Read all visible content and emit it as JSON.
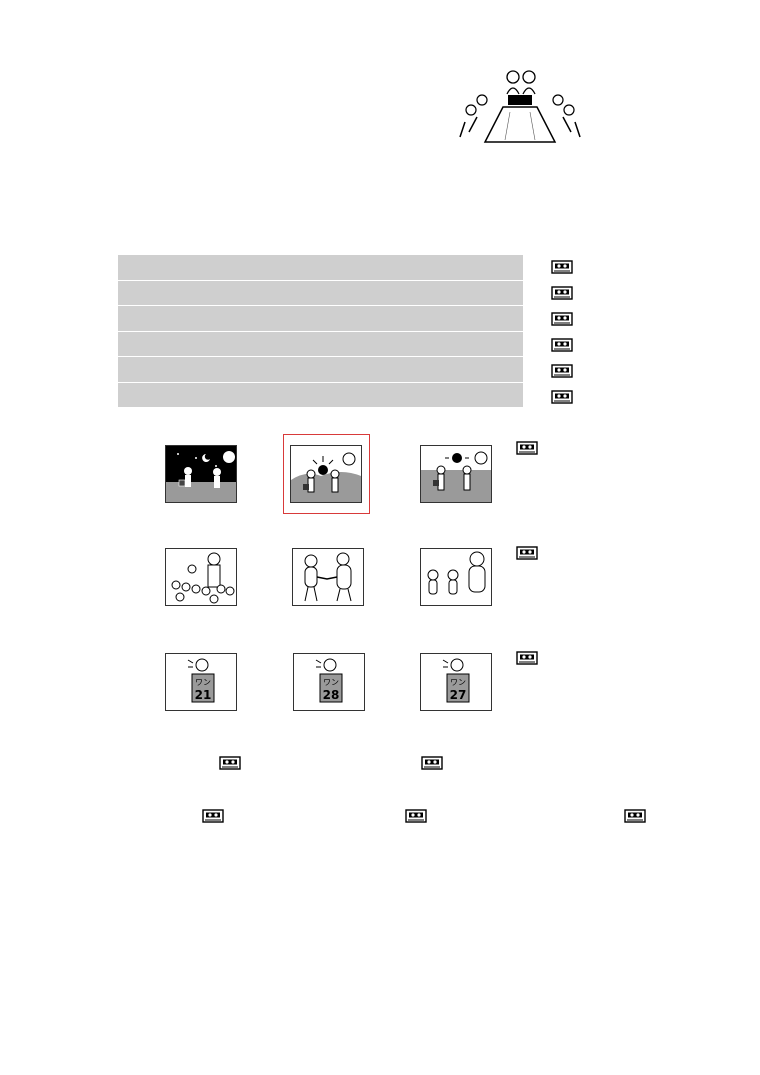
{
  "page": {
    "illustration": "meeting-room-illustration",
    "audio_icon": "cassette-tape-icon"
  },
  "table": {
    "rows": [
      "",
      "",
      "",
      "",
      "",
      ""
    ]
  },
  "pictures": [
    {
      "row": 1,
      "items": [
        "night-scene",
        "sunrise-scene",
        "sun-clock-scene"
      ]
    },
    {
      "row": 2,
      "items": [
        "crowd-speaker",
        "handshake",
        "three-people"
      ]
    },
    {
      "row": 3,
      "items": [
        "sign-21",
        "sign-28",
        "sign-27"
      ]
    }
  ],
  "signs": {
    "a_top": "ワン",
    "a_num": "21",
    "b_top": "ワン",
    "b_num": "28",
    "c_top": "ワン",
    "c_num": "27"
  },
  "colors": {
    "table_row": "#cfcfcf",
    "highlight": "#d83a3a"
  }
}
